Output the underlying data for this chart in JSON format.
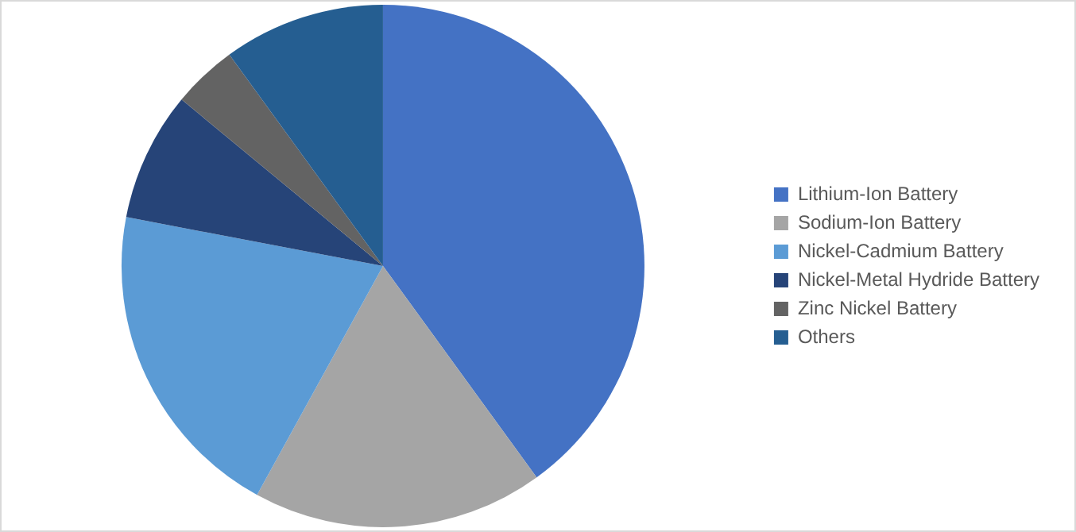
{
  "chart_data": {
    "type": "pie",
    "categories": [
      "Lithium-Ion Battery",
      "Sodium-Ion Battery",
      "Nickel-Cadmium Battery",
      "Nickel-Metal Hydride Battery",
      "Zinc Nickel Battery",
      "Others"
    ],
    "values": [
      40,
      18,
      20,
      8,
      4,
      10
    ],
    "colors": [
      "#4472c4",
      "#a5a5a5",
      "#5b9bd5",
      "#264478",
      "#636363",
      "#255e91"
    ],
    "legend": "right"
  }
}
